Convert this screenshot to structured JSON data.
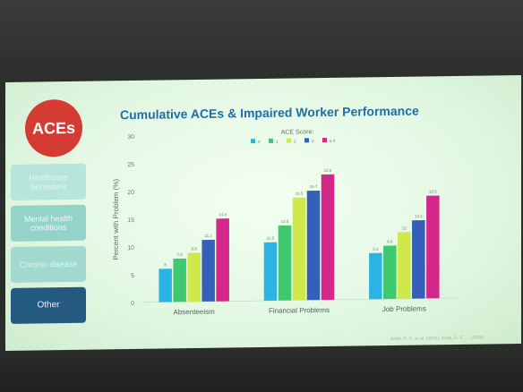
{
  "slide": {
    "badge": "ACEs",
    "side_buttons": [
      "Healthcare behaviors",
      "Mental health conditions",
      "Chronic disease",
      "Other"
    ],
    "title": "Cumulative ACEs & Impaired Worker Performance",
    "citation": "Anda, R. F., et al. (2004). Anda, R. F., ... (2004)."
  },
  "chart_data": {
    "type": "bar",
    "title": "Cumulative ACEs & Impaired Worker Performance",
    "xlabel": "",
    "ylabel": "Percent with Problem (%)",
    "ylim": [
      0,
      30
    ],
    "yticks": [
      0,
      5,
      10,
      15,
      20,
      25,
      30
    ],
    "grid": false,
    "legend_title": "ACE Score:",
    "legend_position": "top-center",
    "categories": [
      "Absenteeism",
      "Financial Problems",
      "Job Problems"
    ],
    "series": [
      {
        "name": "0",
        "color": "#2bb3e3",
        "values": [
          6,
          10.5,
          8.3
        ]
      },
      {
        "name": "1",
        "color": "#3ec86f",
        "values": [
          7.8,
          13.5,
          9.6
        ]
      },
      {
        "name": "2",
        "color": "#cfe84a",
        "values": [
          8.8,
          18.5,
          12
        ]
      },
      {
        "name": "3",
        "color": "#3460b7",
        "values": [
          11.1,
          19.7,
          14.1
        ]
      },
      {
        "name": "≥ 4",
        "color": "#d4278a",
        "values": [
          14.9,
          22.6,
          18.5
        ]
      }
    ],
    "data_labels": [
      [
        "6",
        "7.8",
        "8.8",
        "11.1",
        "14.9"
      ],
      [
        "10.5",
        "13.5",
        "18.5",
        "19.7",
        "22.6"
      ],
      [
        "8.3",
        "9.6",
        "12",
        "14.1",
        "18.5"
      ]
    ]
  }
}
